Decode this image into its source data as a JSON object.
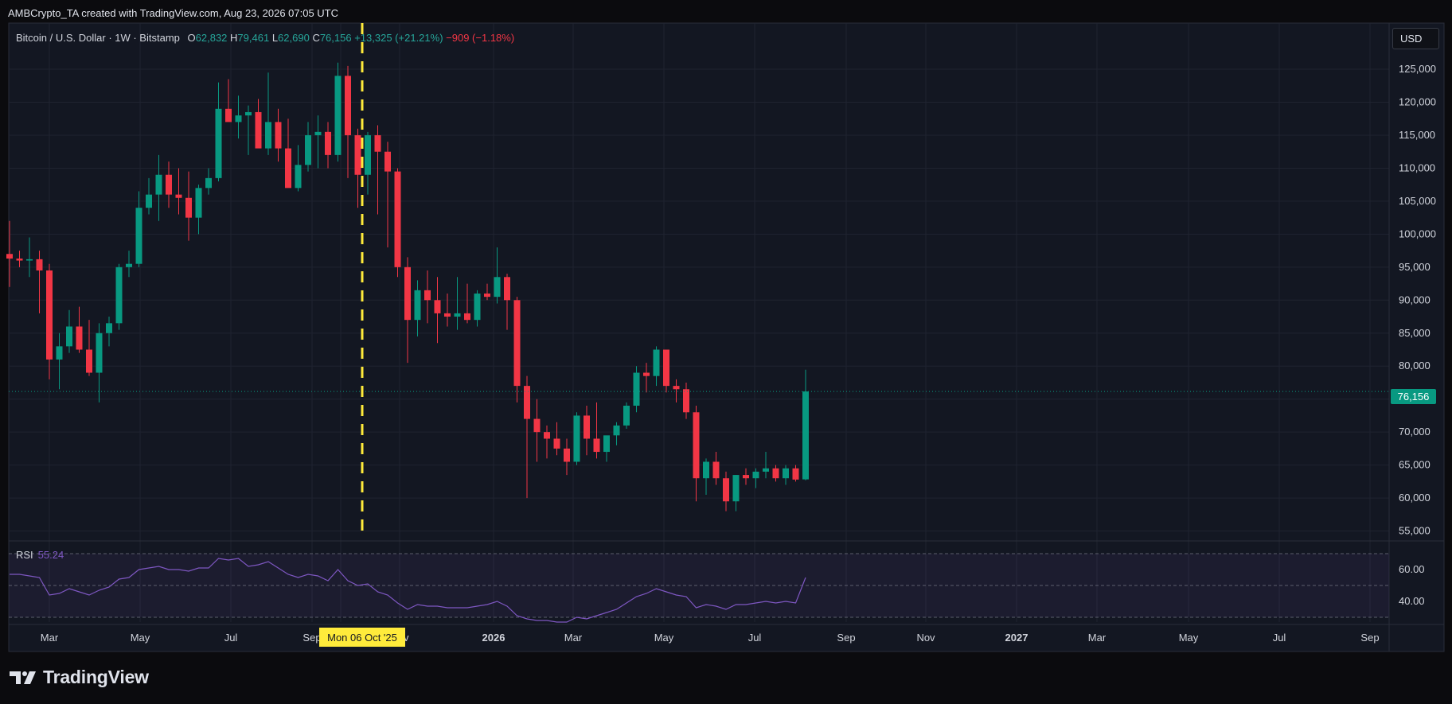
{
  "caption": "AMBCrypto_TA created with TradingView.com, Aug 23, 2026 07:05 UTC",
  "legend": {
    "symbol": "Bitcoin / U.S. Dollar · 1W · Bitstamp",
    "o_label": "O",
    "o_value": "62,832",
    "h_label": "H",
    "h_value": "79,461",
    "l_label": "L",
    "l_value": "62,690",
    "c_label": "C",
    "c_value": "76,156",
    "change": "+13,325 (+21.21%)",
    "vol_change": "−909 (−1.18%)"
  },
  "currency_button": "USD",
  "price_tag": "76,156",
  "crosshair_date": "Mon 06 Oct '25",
  "rsi": {
    "label": "RSI",
    "value": "55.24"
  },
  "brand": "TradingView",
  "colors": {
    "up": "#089981",
    "down": "#f23645",
    "rsi": "#7e57c2",
    "crosshair": "#ffeb3b",
    "background": "#131722"
  },
  "chart_data": [
    {
      "type": "candlestick",
      "title": "Bitcoin / U.S. Dollar · 1W · Bitstamp",
      "interval": "1W",
      "y_axis_side": "right",
      "ylim": [
        53500,
        132000
      ],
      "y_ticks": [
        "55,000",
        "60,000",
        "65,000",
        "70,000",
        "75,000",
        "80,000",
        "85,000",
        "90,000",
        "95,000",
        "100,000",
        "105,000",
        "110,000",
        "115,000",
        "120,000",
        "125,000"
      ],
      "x_ticks": [
        "Mar",
        "May",
        "Jul",
        "Sep",
        "Oct",
        "Nov",
        "2026",
        "Mar",
        "May",
        "Jul",
        "Sep",
        "Nov",
        "2027",
        "Mar",
        "May",
        "Jul",
        "Sep"
      ],
      "grid": true,
      "candles_ohlc": [
        [
          97000,
          102000,
          92000,
          96300
        ],
        [
          96300,
          97500,
          95000,
          96000
        ],
        [
          96000,
          99500,
          93500,
          96200
        ],
        [
          96200,
          97500,
          88000,
          94500
        ],
        [
          94500,
          95500,
          78000,
          81000
        ],
        [
          81000,
          85000,
          76500,
          83000
        ],
        [
          83000,
          88500,
          82000,
          86000
        ],
        [
          86000,
          89000,
          82000,
          82500
        ],
        [
          82500,
          87000,
          78500,
          79000
        ],
        [
          79000,
          86500,
          74500,
          85000
        ],
        [
          85000,
          87500,
          83000,
          86500
        ],
        [
          86500,
          95500,
          85500,
          95000
        ],
        [
          95000,
          97500,
          93500,
          95500
        ],
        [
          95500,
          106500,
          95000,
          104000
        ],
        [
          104000,
          108500,
          103000,
          106000
        ],
        [
          106000,
          112000,
          102000,
          109000
        ],
        [
          109000,
          111000,
          104000,
          106000
        ],
        [
          106000,
          110000,
          103000,
          105500
        ],
        [
          105500,
          109500,
          99000,
          102500
        ],
        [
          102500,
          107500,
          100000,
          107000
        ],
        [
          107000,
          110000,
          106000,
          108500
        ],
        [
          108500,
          123000,
          108000,
          119000
        ],
        [
          119000,
          123500,
          117500,
          117000
        ],
        [
          117000,
          121000,
          114500,
          118000
        ],
        [
          118000,
          119500,
          112000,
          118500
        ],
        [
          118500,
          120500,
          113500,
          113000
        ],
        [
          113000,
          124500,
          112000,
          117000
        ],
        [
          117000,
          119000,
          111000,
          113000
        ],
        [
          113000,
          117500,
          108000,
          107000
        ],
        [
          107000,
          113500,
          106500,
          110500
        ],
        [
          110500,
          117000,
          109500,
          115000
        ],
        [
          115000,
          118000,
          110000,
          115500
        ],
        [
          115500,
          117000,
          110000,
          112000
        ],
        [
          112000,
          126000,
          111000,
          124000
        ],
        [
          124000,
          125500,
          108500,
          115000
        ],
        [
          115000,
          116000,
          104000,
          109000
        ],
        [
          109000,
          115500,
          106000,
          115000
        ],
        [
          115000,
          116500,
          103000,
          112500
        ],
        [
          112500,
          114000,
          98000,
          109500
        ],
        [
          109500,
          110000,
          93500,
          95000
        ],
        [
          95000,
          96500,
          80500,
          87000
        ],
        [
          87000,
          93000,
          84500,
          91500
        ],
        [
          91500,
          94500,
          86500,
          90000
        ],
        [
          90000,
          93500,
          83500,
          88000
        ],
        [
          88000,
          91000,
          86000,
          87500
        ],
        [
          87500,
          93500,
          85500,
          88000
        ],
        [
          88000,
          92500,
          86500,
          87000
        ],
        [
          87000,
          91500,
          86000,
          91000
        ],
        [
          91000,
          92500,
          90000,
          90500
        ],
        [
          90500,
          98000,
          89500,
          93500
        ],
        [
          93500,
          94000,
          85500,
          90000
        ],
        [
          90000,
          90500,
          74500,
          77000
        ],
        [
          77000,
          78500,
          60000,
          72000
        ],
        [
          72000,
          75000,
          65500,
          70000
        ],
        [
          70000,
          71000,
          66000,
          69000
        ],
        [
          69000,
          71500,
          66500,
          67500
        ],
        [
          67500,
          69000,
          63500,
          65500
        ],
        [
          65500,
          73000,
          65000,
          72500
        ],
        [
          72500,
          74000,
          66500,
          69000
        ],
        [
          69000,
          74500,
          66000,
          67000
        ],
        [
          67000,
          69000,
          65500,
          69500
        ],
        [
          69500,
          71500,
          68000,
          71000
        ],
        [
          71000,
          74500,
          70500,
          74000
        ],
        [
          74000,
          80000,
          73000,
          79000
        ],
        [
          79000,
          80500,
          76000,
          78500
        ],
        [
          78500,
          83000,
          77000,
          82500
        ],
        [
          82500,
          82500,
          76000,
          77000
        ],
        [
          77000,
          78000,
          74500,
          76500
        ],
        [
          76500,
          77500,
          72000,
          73000
        ],
        [
          73000,
          74000,
          59500,
          63000
        ],
        [
          63000,
          66000,
          60500,
          65500
        ],
        [
          65500,
          67000,
          62000,
          63000
        ],
        [
          63000,
          64000,
          58000,
          59500
        ],
        [
          59500,
          63500,
          58000,
          63500
        ],
        [
          63500,
          64500,
          62000,
          63000
        ],
        [
          63000,
          64500,
          61500,
          64000
        ],
        [
          64000,
          67000,
          63000,
          64500
        ],
        [
          64500,
          65000,
          62500,
          63000
        ],
        [
          63000,
          65000,
          62000,
          64500
        ],
        [
          64500,
          65000,
          62500,
          62800
        ],
        [
          62832,
          79461,
          62690,
          76156
        ]
      ]
    },
    {
      "type": "line",
      "title": "RSI",
      "ylim": [
        27,
        73
      ],
      "y_ticks": [
        "40.00",
        "60.00"
      ],
      "band": [
        30,
        70
      ],
      "mid": 50,
      "values": [
        57,
        57,
        56,
        55,
        44,
        45,
        48,
        46,
        44,
        47,
        49,
        54,
        55,
        60,
        61,
        62,
        60,
        60,
        59,
        61,
        61,
        67,
        66,
        67,
        62,
        63,
        65,
        61,
        57,
        55,
        57,
        56,
        53,
        60,
        53,
        50,
        51,
        46,
        44,
        39,
        35,
        38,
        37,
        37,
        36,
        36,
        36,
        37,
        38,
        40,
        37,
        31,
        29,
        28,
        28,
        27,
        27,
        30,
        29,
        31,
        33,
        35,
        39,
        43,
        45,
        48,
        46,
        44,
        43,
        36,
        38,
        37,
        35,
        38,
        38,
        39,
        40,
        39,
        40,
        39,
        55
      ]
    }
  ]
}
